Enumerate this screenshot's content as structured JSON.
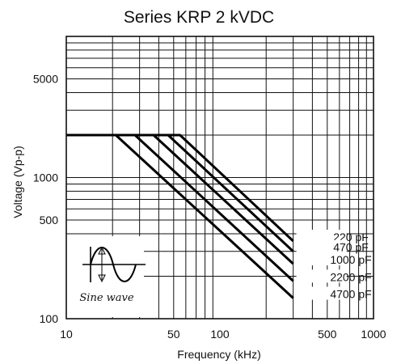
{
  "chart_data": {
    "type": "line",
    "title": "Series KRP 2 kVDC",
    "xlabel": "Frequency (kHz)",
    "ylabel": "Voltage (Vp-p)",
    "x_scale": "log",
    "y_scale": "log",
    "xlim": [
      10,
      1000
    ],
    "ylim": [
      100,
      10000
    ],
    "x_ticks": [
      10,
      50,
      100,
      500,
      1000
    ],
    "x_tick_labels": [
      "10",
      "50",
      "100",
      "500",
      "1000"
    ],
    "y_ticks": [
      100,
      500,
      1000,
      5000
    ],
    "y_tick_labels": [
      "100",
      "500",
      "1000",
      "5000"
    ],
    "grid": true,
    "series": [
      {
        "name": "220 pF",
        "x": [
          10,
          55,
          300
        ],
        "y": [
          2000,
          2000,
          355
        ]
      },
      {
        "name": "470 pF",
        "x": [
          10,
          46,
          300
        ],
        "y": [
          2000,
          2000,
          300
        ]
      },
      {
        "name": "1000 pF",
        "x": [
          10,
          37,
          300
        ],
        "y": [
          2000,
          2000,
          245
        ]
      },
      {
        "name": "2200 pF",
        "x": [
          10,
          28,
          300
        ],
        "y": [
          2000,
          2000,
          185
        ]
      },
      {
        "name": "4700 pF",
        "x": [
          10,
          21,
          300
        ],
        "y": [
          2000,
          2000,
          140
        ]
      }
    ],
    "inset": {
      "label": "Sine wave",
      "icon": "sine-wave-icon"
    }
  }
}
